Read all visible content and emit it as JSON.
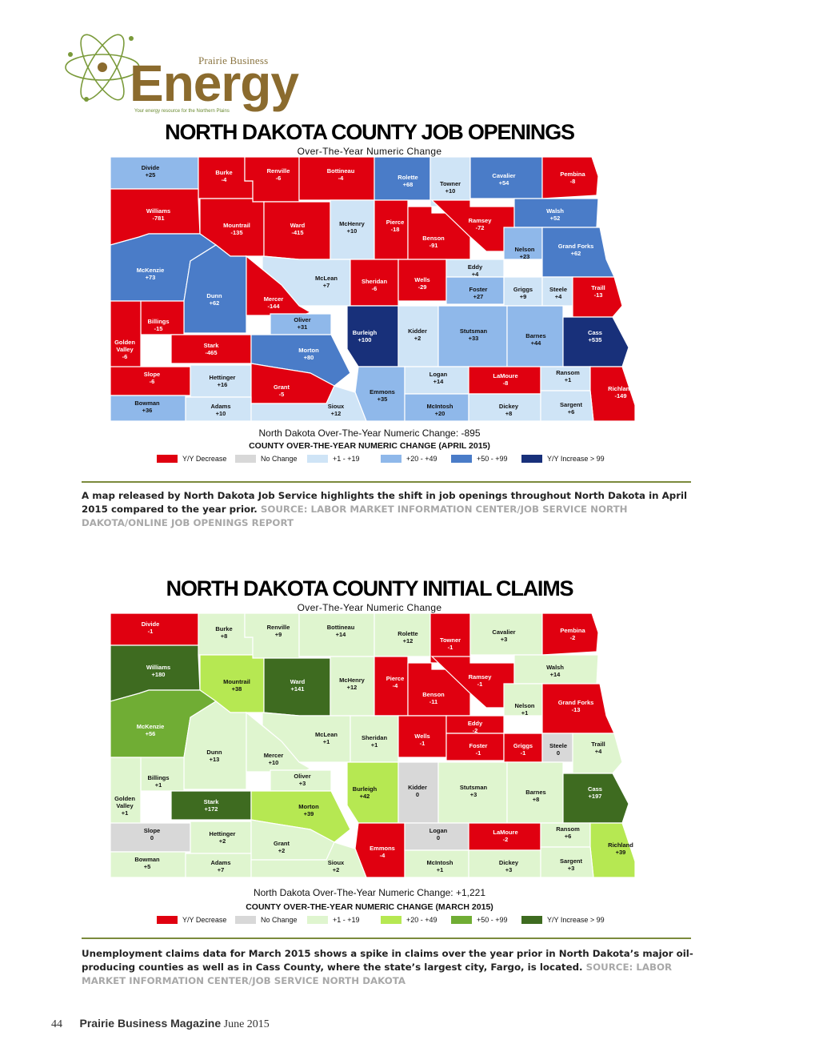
{
  "logo": {
    "brand_small": "Prairie Business",
    "brand_large": "Energy",
    "tagline": "Your energy resource for the Northern Plains"
  },
  "colors": {
    "decrease": "#e00010",
    "nochange": "#d8d8d8",
    "b1": "#cfe4f6",
    "b2": "#8fb8ea",
    "b3": "#4a7cc8",
    "b4": "#18307a",
    "g1": "#dff5cf",
    "g2": "#b6e852",
    "g3": "#70ad34",
    "g4": "#3e6b20"
  },
  "maps": [
    {
      "title": "NORTH DAKOTA COUNTY JOB OPENINGS",
      "subtitle": "Over-The-Year Numeric Change",
      "total": "North Dakota Over-The-Year Numeric Change: -895",
      "legend_title": "COUNTY OVER-THE-YEAR NUMERIC CHANGE (APRIL 2015)",
      "legend": [
        {
          "label": "Y/Y Decrease",
          "color": "#e00010"
        },
        {
          "label": "No Change",
          "color": "#d8d8d8"
        },
        {
          "label": "+1 - +19",
          "color": "#cfe4f6"
        },
        {
          "label": "+20 - +49",
          "color": "#8fb8ea"
        },
        {
          "label": "+50 - +99",
          "color": "#4a7cc8"
        },
        {
          "label": "Y/Y Increase > 99",
          "color": "#18307a"
        }
      ],
      "counties": [
        {
          "name": "Divide",
          "value": "+25",
          "color": "#8fb8ea"
        },
        {
          "name": "Burke",
          "value": "-4",
          "color": "#e00010"
        },
        {
          "name": "Renville",
          "value": "-6",
          "color": "#e00010"
        },
        {
          "name": "Bottineau",
          "value": "-4",
          "color": "#e00010"
        },
        {
          "name": "Rolette",
          "value": "+68",
          "color": "#4a7cc8"
        },
        {
          "name": "Towner",
          "value": "+10",
          "color": "#cfe4f6"
        },
        {
          "name": "Cavalier",
          "value": "+54",
          "color": "#4a7cc8"
        },
        {
          "name": "Pembina",
          "value": "-8",
          "color": "#e00010"
        },
        {
          "name": "Williams",
          "value": "-781",
          "color": "#e00010"
        },
        {
          "name": "Mountrail",
          "value": "-135",
          "color": "#e00010"
        },
        {
          "name": "Ward",
          "value": "-415",
          "color": "#e00010"
        },
        {
          "name": "McHenry",
          "value": "+10",
          "color": "#cfe4f6"
        },
        {
          "name": "Pierce",
          "value": "-18",
          "color": "#e00010"
        },
        {
          "name": "Benson",
          "value": "-91",
          "color": "#e00010"
        },
        {
          "name": "Ramsey",
          "value": "-72",
          "color": "#e00010"
        },
        {
          "name": "Walsh",
          "value": "+52",
          "color": "#4a7cc8"
        },
        {
          "name": "Nelson",
          "value": "+23",
          "color": "#8fb8ea"
        },
        {
          "name": "Grand Forks",
          "value": "+62",
          "color": "#4a7cc8"
        },
        {
          "name": "McKenzie",
          "value": "+73",
          "color": "#4a7cc8"
        },
        {
          "name": "McLean",
          "value": "+7",
          "color": "#cfe4f6"
        },
        {
          "name": "Sheridan",
          "value": "-6",
          "color": "#e00010"
        },
        {
          "name": "Wells",
          "value": "-29",
          "color": "#e00010"
        },
        {
          "name": "Eddy",
          "value": "+4",
          "color": "#cfe4f6"
        },
        {
          "name": "Foster",
          "value": "+27",
          "color": "#8fb8ea"
        },
        {
          "name": "Griggs",
          "value": "+9",
          "color": "#cfe4f6"
        },
        {
          "name": "Steele",
          "value": "+4",
          "color": "#cfe4f6"
        },
        {
          "name": "Traill",
          "value": "-13",
          "color": "#e00010"
        },
        {
          "name": "Dunn",
          "value": "+62",
          "color": "#4a7cc8"
        },
        {
          "name": "Mercer",
          "value": "-144",
          "color": "#e00010"
        },
        {
          "name": "Oliver",
          "value": "+31",
          "color": "#8fb8ea"
        },
        {
          "name": "Billings",
          "value": "-15",
          "color": "#e00010"
        },
        {
          "name": "Golden Valley",
          "value": "-6",
          "color": "#e00010"
        },
        {
          "name": "Stark",
          "value": "-465",
          "color": "#e00010"
        },
        {
          "name": "Morton",
          "value": "+80",
          "color": "#4a7cc8"
        },
        {
          "name": "Burleigh",
          "value": "+100",
          "color": "#18307a"
        },
        {
          "name": "Kidder",
          "value": "+2",
          "color": "#cfe4f6"
        },
        {
          "name": "Stutsman",
          "value": "+33",
          "color": "#8fb8ea"
        },
        {
          "name": "Barnes",
          "value": "+44",
          "color": "#8fb8ea"
        },
        {
          "name": "Cass",
          "value": "+535",
          "color": "#18307a"
        },
        {
          "name": "Slope",
          "value": "-6",
          "color": "#e00010"
        },
        {
          "name": "Hettinger",
          "value": "+16",
          "color": "#cfe4f6"
        },
        {
          "name": "Grant",
          "value": "-5",
          "color": "#e00010"
        },
        {
          "name": "Emmons",
          "value": "+35",
          "color": "#8fb8ea"
        },
        {
          "name": "Logan",
          "value": "+14",
          "color": "#cfe4f6"
        },
        {
          "name": "LaMoure",
          "value": "-8",
          "color": "#e00010"
        },
        {
          "name": "Ransom",
          "value": "+1",
          "color": "#cfe4f6"
        },
        {
          "name": "Richland",
          "value": "-149",
          "color": "#e00010"
        },
        {
          "name": "Bowman",
          "value": "+36",
          "color": "#8fb8ea"
        },
        {
          "name": "Adams",
          "value": "+10",
          "color": "#cfe4f6"
        },
        {
          "name": "Sioux",
          "value": "+12",
          "color": "#cfe4f6"
        },
        {
          "name": "McIntosh",
          "value": "+20",
          "color": "#8fb8ea"
        },
        {
          "name": "Dickey",
          "value": "+8",
          "color": "#cfe4f6"
        },
        {
          "name": "Sargent",
          "value": "+6",
          "color": "#cfe4f6"
        }
      ],
      "caption": "A map released by North Dakota Job Service highlights the shift in job openings throughout North Dakota in April 2015 compared to the year prior.",
      "source": "SOURCE: LABOR MARKET INFORMATION CENTER/JOB SERVICE NORTH DAKOTA/ONLINE JOB OPENINGS REPORT"
    },
    {
      "title": "NORTH DAKOTA COUNTY INITIAL CLAIMS",
      "subtitle": "Over-The-Year Numeric Change",
      "total": "North Dakota Over-The-Year Numeric Change: +1,221",
      "legend_title": "COUNTY OVER-THE-YEAR NUMERIC CHANGE (MARCH 2015)",
      "legend": [
        {
          "label": "Y/Y Decrease",
          "color": "#e00010"
        },
        {
          "label": "No Change",
          "color": "#d8d8d8"
        },
        {
          "label": "+1 - +19",
          "color": "#dff5cf"
        },
        {
          "label": "+20 - +49",
          "color": "#b6e852"
        },
        {
          "label": "+50 - +99",
          "color": "#70ad34"
        },
        {
          "label": "Y/Y Increase > 99",
          "color": "#3e6b20"
        }
      ],
      "counties": [
        {
          "name": "Divide",
          "value": "-1",
          "color": "#e00010"
        },
        {
          "name": "Burke",
          "value": "+8",
          "color": "#dff5cf"
        },
        {
          "name": "Renville",
          "value": "+9",
          "color": "#dff5cf"
        },
        {
          "name": "Bottineau",
          "value": "+14",
          "color": "#dff5cf"
        },
        {
          "name": "Rolette",
          "value": "+12",
          "color": "#dff5cf"
        },
        {
          "name": "Towner",
          "value": "-1",
          "color": "#e00010"
        },
        {
          "name": "Cavalier",
          "value": "+3",
          "color": "#dff5cf"
        },
        {
          "name": "Pembina",
          "value": "-2",
          "color": "#e00010"
        },
        {
          "name": "Williams",
          "value": "+180",
          "color": "#3e6b20"
        },
        {
          "name": "Mountrail",
          "value": "+38",
          "color": "#b6e852"
        },
        {
          "name": "Ward",
          "value": "+141",
          "color": "#3e6b20"
        },
        {
          "name": "McHenry",
          "value": "+12",
          "color": "#dff5cf"
        },
        {
          "name": "Pierce",
          "value": "-4",
          "color": "#e00010"
        },
        {
          "name": "Benson",
          "value": "-11",
          "color": "#e00010"
        },
        {
          "name": "Ramsey",
          "value": "-1",
          "color": "#e00010"
        },
        {
          "name": "Walsh",
          "value": "+14",
          "color": "#dff5cf"
        },
        {
          "name": "Nelson",
          "value": "+1",
          "color": "#dff5cf"
        },
        {
          "name": "Grand Forks",
          "value": "-13",
          "color": "#e00010"
        },
        {
          "name": "McKenzie",
          "value": "+56",
          "color": "#70ad34"
        },
        {
          "name": "McLean",
          "value": "+1",
          "color": "#dff5cf"
        },
        {
          "name": "Sheridan",
          "value": "+1",
          "color": "#dff5cf"
        },
        {
          "name": "Wells",
          "value": "-1",
          "color": "#e00010"
        },
        {
          "name": "Eddy",
          "value": "-2",
          "color": "#e00010"
        },
        {
          "name": "Foster",
          "value": "-1",
          "color": "#e00010"
        },
        {
          "name": "Griggs",
          "value": "-1",
          "color": "#e00010"
        },
        {
          "name": "Steele",
          "value": "0",
          "color": "#d8d8d8"
        },
        {
          "name": "Traill",
          "value": "+4",
          "color": "#dff5cf"
        },
        {
          "name": "Dunn",
          "value": "+13",
          "color": "#dff5cf"
        },
        {
          "name": "Mercer",
          "value": "+10",
          "color": "#dff5cf"
        },
        {
          "name": "Oliver",
          "value": "+3",
          "color": "#dff5cf"
        },
        {
          "name": "Billings",
          "value": "+1",
          "color": "#dff5cf"
        },
        {
          "name": "Golden Valley",
          "value": "+1",
          "color": "#dff5cf"
        },
        {
          "name": "Stark",
          "value": "+172",
          "color": "#3e6b20"
        },
        {
          "name": "Morton",
          "value": "+39",
          "color": "#b6e852"
        },
        {
          "name": "Burleigh",
          "value": "+42",
          "color": "#b6e852"
        },
        {
          "name": "Kidder",
          "value": "0",
          "color": "#d8d8d8"
        },
        {
          "name": "Stutsman",
          "value": "+3",
          "color": "#dff5cf"
        },
        {
          "name": "Barnes",
          "value": "+8",
          "color": "#dff5cf"
        },
        {
          "name": "Cass",
          "value": "+197",
          "color": "#3e6b20"
        },
        {
          "name": "Slope",
          "value": "0",
          "color": "#d8d8d8"
        },
        {
          "name": "Hettinger",
          "value": "+2",
          "color": "#dff5cf"
        },
        {
          "name": "Grant",
          "value": "+2",
          "color": "#dff5cf"
        },
        {
          "name": "Emmons",
          "value": "-4",
          "color": "#e00010"
        },
        {
          "name": "Logan",
          "value": "0",
          "color": "#d8d8d8"
        },
        {
          "name": "LaMoure",
          "value": "-2",
          "color": "#e00010"
        },
        {
          "name": "Ransom",
          "value": "+6",
          "color": "#dff5cf"
        },
        {
          "name": "Richland",
          "value": "+39",
          "color": "#b6e852"
        },
        {
          "name": "Bowman",
          "value": "+5",
          "color": "#dff5cf"
        },
        {
          "name": "Adams",
          "value": "+7",
          "color": "#dff5cf"
        },
        {
          "name": "Sioux",
          "value": "+2",
          "color": "#dff5cf"
        },
        {
          "name": "McIntosh",
          "value": "+1",
          "color": "#dff5cf"
        },
        {
          "name": "Dickey",
          "value": "+3",
          "color": "#dff5cf"
        },
        {
          "name": "Sargent",
          "value": "+3",
          "color": "#dff5cf"
        }
      ],
      "caption": "Unemployment claims data for March 2015 shows a spike in claims over the year prior in North Dakota’s major oil-producing counties as well as in Cass County, where the state’s largest city, Fargo, is located.",
      "source": "SOURCE: LABOR MARKET INFORMATION CENTER/JOB SERVICE NORTH DAKOTA"
    }
  ],
  "footer": {
    "page_number": "44",
    "magazine": "Prairie Business Magazine",
    "issue": "June 2015"
  }
}
